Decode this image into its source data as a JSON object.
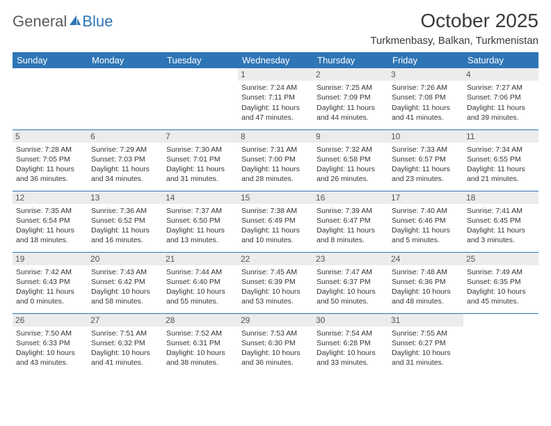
{
  "logo": {
    "word1": "General",
    "word2": "Blue"
  },
  "title": "October 2025",
  "location": "Turkmenbasy, Balkan, Turkmenistan",
  "weekdays": [
    "Sunday",
    "Monday",
    "Tuesday",
    "Wednesday",
    "Thursday",
    "Friday",
    "Saturday"
  ],
  "colors": {
    "header_bg": "#2e75b6",
    "header_text": "#ffffff",
    "border": "#2e75b6",
    "daynum_bg": "#ececec",
    "logo_gray": "#5a5a5a",
    "logo_blue": "#2e75b6"
  },
  "weeks": [
    [
      {
        "n": "",
        "lines": []
      },
      {
        "n": "",
        "lines": []
      },
      {
        "n": "",
        "lines": []
      },
      {
        "n": "1",
        "lines": [
          "Sunrise: 7:24 AM",
          "Sunset: 7:11 PM",
          "Daylight: 11 hours and 47 minutes."
        ]
      },
      {
        "n": "2",
        "lines": [
          "Sunrise: 7:25 AM",
          "Sunset: 7:09 PM",
          "Daylight: 11 hours and 44 minutes."
        ]
      },
      {
        "n": "3",
        "lines": [
          "Sunrise: 7:26 AM",
          "Sunset: 7:08 PM",
          "Daylight: 11 hours and 41 minutes."
        ]
      },
      {
        "n": "4",
        "lines": [
          "Sunrise: 7:27 AM",
          "Sunset: 7:06 PM",
          "Daylight: 11 hours and 39 minutes."
        ]
      }
    ],
    [
      {
        "n": "5",
        "lines": [
          "Sunrise: 7:28 AM",
          "Sunset: 7:05 PM",
          "Daylight: 11 hours and 36 minutes."
        ]
      },
      {
        "n": "6",
        "lines": [
          "Sunrise: 7:29 AM",
          "Sunset: 7:03 PM",
          "Daylight: 11 hours and 34 minutes."
        ]
      },
      {
        "n": "7",
        "lines": [
          "Sunrise: 7:30 AM",
          "Sunset: 7:01 PM",
          "Daylight: 11 hours and 31 minutes."
        ]
      },
      {
        "n": "8",
        "lines": [
          "Sunrise: 7:31 AM",
          "Sunset: 7:00 PM",
          "Daylight: 11 hours and 28 minutes."
        ]
      },
      {
        "n": "9",
        "lines": [
          "Sunrise: 7:32 AM",
          "Sunset: 6:58 PM",
          "Daylight: 11 hours and 26 minutes."
        ]
      },
      {
        "n": "10",
        "lines": [
          "Sunrise: 7:33 AM",
          "Sunset: 6:57 PM",
          "Daylight: 11 hours and 23 minutes."
        ]
      },
      {
        "n": "11",
        "lines": [
          "Sunrise: 7:34 AM",
          "Sunset: 6:55 PM",
          "Daylight: 11 hours and 21 minutes."
        ]
      }
    ],
    [
      {
        "n": "12",
        "lines": [
          "Sunrise: 7:35 AM",
          "Sunset: 6:54 PM",
          "Daylight: 11 hours and 18 minutes."
        ]
      },
      {
        "n": "13",
        "lines": [
          "Sunrise: 7:36 AM",
          "Sunset: 6:52 PM",
          "Daylight: 11 hours and 16 minutes."
        ]
      },
      {
        "n": "14",
        "lines": [
          "Sunrise: 7:37 AM",
          "Sunset: 6:50 PM",
          "Daylight: 11 hours and 13 minutes."
        ]
      },
      {
        "n": "15",
        "lines": [
          "Sunrise: 7:38 AM",
          "Sunset: 6:49 PM",
          "Daylight: 11 hours and 10 minutes."
        ]
      },
      {
        "n": "16",
        "lines": [
          "Sunrise: 7:39 AM",
          "Sunset: 6:47 PM",
          "Daylight: 11 hours and 8 minutes."
        ]
      },
      {
        "n": "17",
        "lines": [
          "Sunrise: 7:40 AM",
          "Sunset: 6:46 PM",
          "Daylight: 11 hours and 5 minutes."
        ]
      },
      {
        "n": "18",
        "lines": [
          "Sunrise: 7:41 AM",
          "Sunset: 6:45 PM",
          "Daylight: 11 hours and 3 minutes."
        ]
      }
    ],
    [
      {
        "n": "19",
        "lines": [
          "Sunrise: 7:42 AM",
          "Sunset: 6:43 PM",
          "Daylight: 11 hours and 0 minutes."
        ]
      },
      {
        "n": "20",
        "lines": [
          "Sunrise: 7:43 AM",
          "Sunset: 6:42 PM",
          "Daylight: 10 hours and 58 minutes."
        ]
      },
      {
        "n": "21",
        "lines": [
          "Sunrise: 7:44 AM",
          "Sunset: 6:40 PM",
          "Daylight: 10 hours and 55 minutes."
        ]
      },
      {
        "n": "22",
        "lines": [
          "Sunrise: 7:45 AM",
          "Sunset: 6:39 PM",
          "Daylight: 10 hours and 53 minutes."
        ]
      },
      {
        "n": "23",
        "lines": [
          "Sunrise: 7:47 AM",
          "Sunset: 6:37 PM",
          "Daylight: 10 hours and 50 minutes."
        ]
      },
      {
        "n": "24",
        "lines": [
          "Sunrise: 7:48 AM",
          "Sunset: 6:36 PM",
          "Daylight: 10 hours and 48 minutes."
        ]
      },
      {
        "n": "25",
        "lines": [
          "Sunrise: 7:49 AM",
          "Sunset: 6:35 PM",
          "Daylight: 10 hours and 45 minutes."
        ]
      }
    ],
    [
      {
        "n": "26",
        "lines": [
          "Sunrise: 7:50 AM",
          "Sunset: 6:33 PM",
          "Daylight: 10 hours and 43 minutes."
        ]
      },
      {
        "n": "27",
        "lines": [
          "Sunrise: 7:51 AM",
          "Sunset: 6:32 PM",
          "Daylight: 10 hours and 41 minutes."
        ]
      },
      {
        "n": "28",
        "lines": [
          "Sunrise: 7:52 AM",
          "Sunset: 6:31 PM",
          "Daylight: 10 hours and 38 minutes."
        ]
      },
      {
        "n": "29",
        "lines": [
          "Sunrise: 7:53 AM",
          "Sunset: 6:30 PM",
          "Daylight: 10 hours and 36 minutes."
        ]
      },
      {
        "n": "30",
        "lines": [
          "Sunrise: 7:54 AM",
          "Sunset: 6:28 PM",
          "Daylight: 10 hours and 33 minutes."
        ]
      },
      {
        "n": "31",
        "lines": [
          "Sunrise: 7:55 AM",
          "Sunset: 6:27 PM",
          "Daylight: 10 hours and 31 minutes."
        ]
      },
      {
        "n": "",
        "lines": []
      }
    ]
  ]
}
